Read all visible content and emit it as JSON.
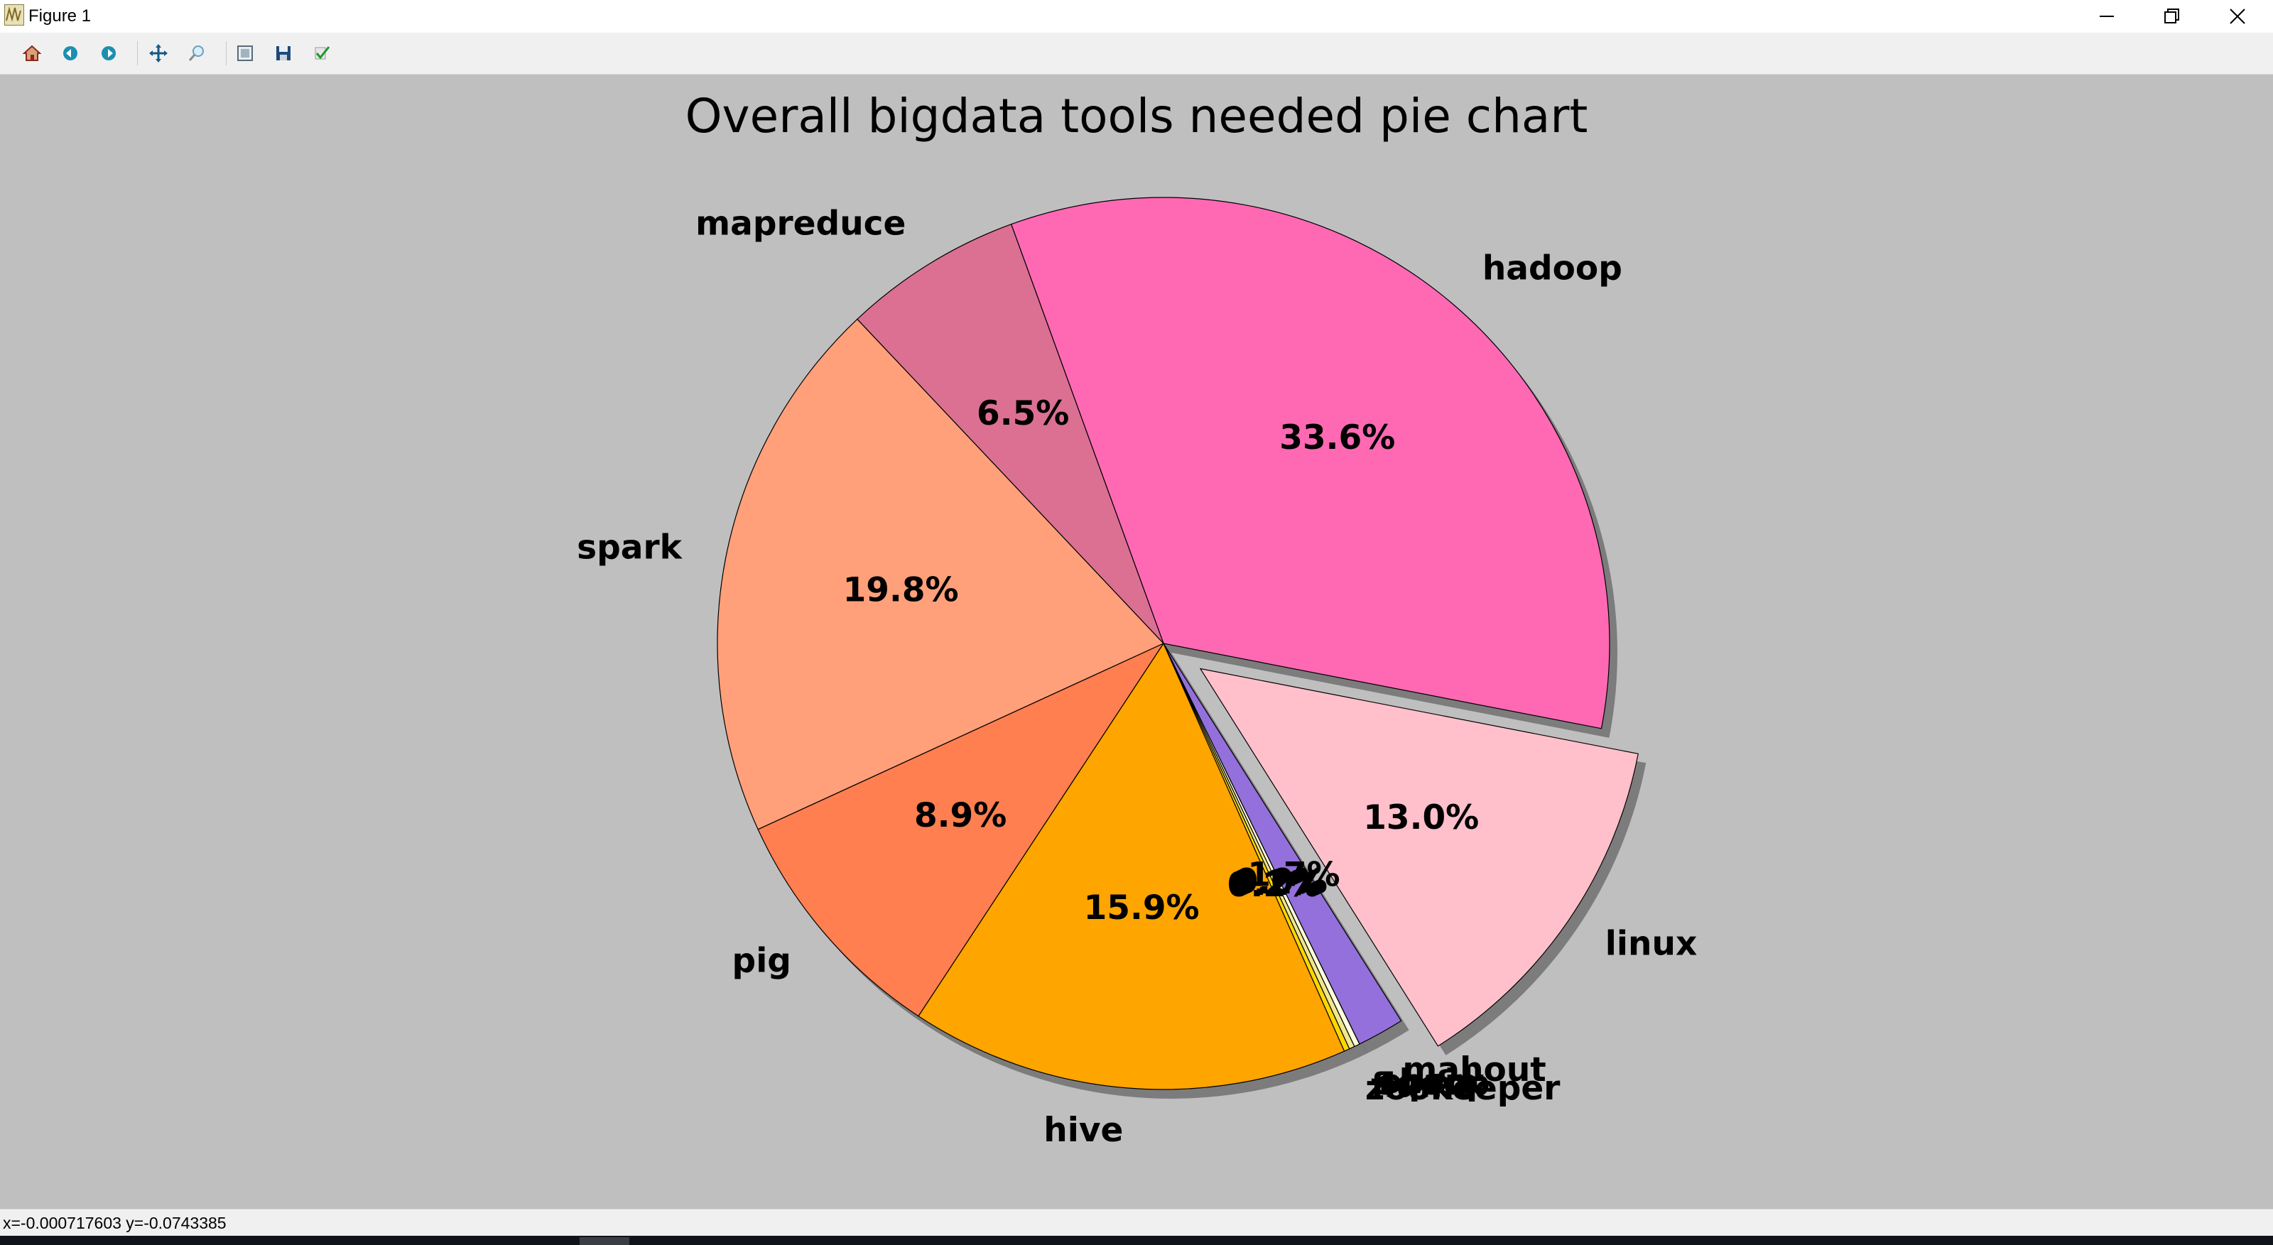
{
  "window": {
    "title": "Figure 1",
    "controls": [
      "minimize",
      "restore",
      "close"
    ]
  },
  "toolbar": {
    "buttons": [
      {
        "name": "home",
        "icon": "home-icon"
      },
      {
        "name": "back",
        "icon": "back-arrow-icon"
      },
      {
        "name": "forward",
        "icon": "forward-arrow-icon"
      },
      {
        "name": "pan",
        "icon": "pan-icon"
      },
      {
        "name": "zoom",
        "icon": "zoom-icon"
      },
      {
        "name": "configure-subplots",
        "icon": "subplots-icon"
      },
      {
        "name": "save",
        "icon": "save-icon"
      },
      {
        "name": "edit-parameters",
        "icon": "checkmark-icon"
      }
    ]
  },
  "status": {
    "readout": "x=-0.000717603 y=-0.0743385"
  },
  "chart_data": {
    "type": "pie",
    "title": "Overall bigdata tools needed pie chart",
    "start_angle_deg": -11,
    "counterclock": true,
    "shadow": true,
    "slices": [
      {
        "label": "hadoop",
        "value": 33.6,
        "pct_text": "33.6%",
        "color": "#ff69b4",
        "explode": 0
      },
      {
        "label": "mapreduce",
        "value": 6.5,
        "pct_text": "6.5%",
        "color": "#db7093",
        "explode": 0
      },
      {
        "label": "spark",
        "value": 19.8,
        "pct_text": "19.8%",
        "color": "#ffa07a",
        "explode": 0
      },
      {
        "label": "pig",
        "value": 8.9,
        "pct_text": "8.9%",
        "color": "#ff7f50",
        "explode": 0
      },
      {
        "label": "hive",
        "value": 15.9,
        "pct_text": "15.9%",
        "color": "#ffa500",
        "explode": 0
      },
      {
        "label": "zookeeper",
        "value": 0.2,
        "pct_text": "0.2%",
        "color": "#ffd700",
        "explode": 0
      },
      {
        "label": "flume",
        "value": 0.2,
        "pct_text": "0.2%",
        "color": "#f0e68c",
        "explode": 0
      },
      {
        "label": "sqoop",
        "value": 0.2,
        "pct_text": "0.2%",
        "color": "#ffffe0",
        "explode": 0
      },
      {
        "label": "oozie",
        "value": 0.0,
        "pct_text": "0.0%",
        "color": "#eee8aa",
        "explode": 0
      },
      {
        "label": "shark",
        "value": 0.0,
        "pct_text": "0.0%",
        "color": "#fafad2",
        "explode": 0
      },
      {
        "label": "mahout",
        "value": 1.7,
        "pct_text": "1.7%",
        "color": "#9370db",
        "explode": 0
      },
      {
        "label": "linux",
        "value": 13.0,
        "pct_text": "13.0%",
        "color": "#ffc0cb",
        "explode": 0.1
      }
    ]
  }
}
